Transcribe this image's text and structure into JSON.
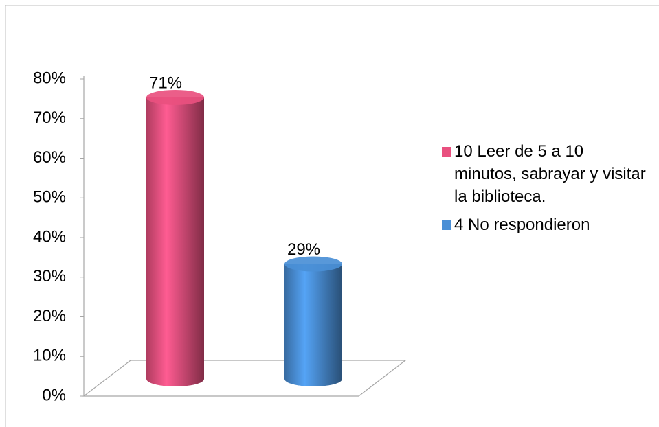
{
  "chart_data": {
    "type": "bar3d",
    "categories": [
      null
    ],
    "series": [
      {
        "name": "10 Leer de 5 a 10 minutos, sabrayar y visitar la biblioteca.",
        "color": "#e9507f",
        "values": [
          71
        ],
        "value_labels": [
          "71%"
        ]
      },
      {
        "name": "4 No respondieron",
        "color": "#4a8fd6",
        "values": [
          29
        ],
        "value_labels": [
          "29%"
        ]
      }
    ],
    "ylim": [
      0,
      80
    ],
    "yticks": [
      {
        "value": 0,
        "label": "0%"
      },
      {
        "value": 10,
        "label": "10%"
      },
      {
        "value": 20,
        "label": "20%"
      },
      {
        "value": 30,
        "label": "30%"
      },
      {
        "value": 40,
        "label": "40%"
      },
      {
        "value": 50,
        "label": "50%"
      },
      {
        "value": 60,
        "label": "60%"
      },
      {
        "value": 70,
        "label": "70%"
      },
      {
        "value": 80,
        "label": "80%"
      }
    ],
    "grid": false,
    "legend": "right"
  }
}
